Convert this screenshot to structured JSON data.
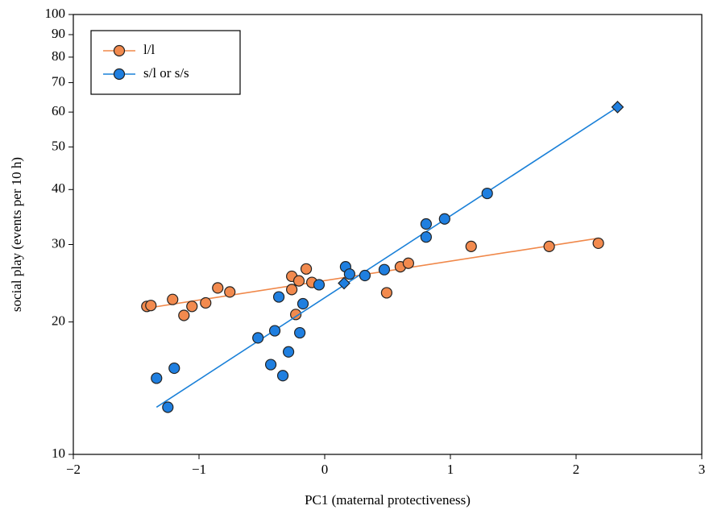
{
  "chart_data": {
    "type": "scatter",
    "x_label": "PC1 (maternal protectiveness)",
    "y_label": "social play (events per 10 h)",
    "xlim": [
      -2,
      3
    ],
    "xticks": [
      {
        "value": -2,
        "label": "−2"
      },
      {
        "value": -1,
        "label": "−1"
      },
      0,
      1,
      2,
      3
    ],
    "ylim": [
      10,
      100
    ],
    "y_scale": "log",
    "yticks": [
      10,
      20,
      30,
      40,
      50,
      60,
      70,
      80,
      90,
      100
    ],
    "legend": "upper-left",
    "series": [
      {
        "name": "l/l",
        "color": "#f28a4e",
        "line_color": "#f0884a",
        "x": [
          -1.415,
          -1.383,
          -1.21,
          -1.12,
          -1.056,
          -0.947,
          -0.851,
          -0.755,
          -0.262,
          -0.262,
          -0.23,
          -0.205,
          -0.147,
          -0.102,
          0.493,
          0.602,
          0.666,
          1.165,
          1.786,
          2.177
        ],
        "values": [
          21.7,
          21.8,
          22.5,
          20.7,
          21.7,
          22.1,
          23.9,
          23.4,
          25.4,
          23.7,
          20.8,
          24.8,
          26.4,
          24.6,
          23.3,
          26.7,
          27.2,
          29.7,
          29.7,
          30.2
        ],
        "fit": {
          "x": [
            -1.415,
            2.177
          ],
          "values": [
            21.5,
            31.0
          ]
        }
      },
      {
        "name": "s/l or s/s",
        "color": "#1f7fe0",
        "line_color": "#1a80d8",
        "x": [
          -1.338,
          -1.197,
          -1.248,
          -0.531,
          -0.397,
          -0.365,
          -0.429,
          -0.333,
          -0.288,
          -0.198,
          -0.173,
          -0.045,
          0.166,
          0.198,
          0.32,
          0.474,
          0.807,
          0.807,
          0.954,
          1.293
        ],
        "values": [
          14.9,
          15.7,
          12.8,
          18.4,
          19.1,
          22.8,
          16.0,
          15.1,
          17.1,
          18.9,
          22.0,
          24.3,
          26.7,
          25.7,
          25.5,
          26.3,
          33.4,
          31.2,
          34.3,
          39.2
        ],
        "fit": {
          "x": [
            -1.338,
            2.33
          ],
          "values": [
            12.8,
            61.6
          ]
        },
        "diamonds": {
          "x": [
            0.154,
            2.33
          ],
          "values": [
            24.5,
            61.6
          ]
        }
      }
    ]
  }
}
